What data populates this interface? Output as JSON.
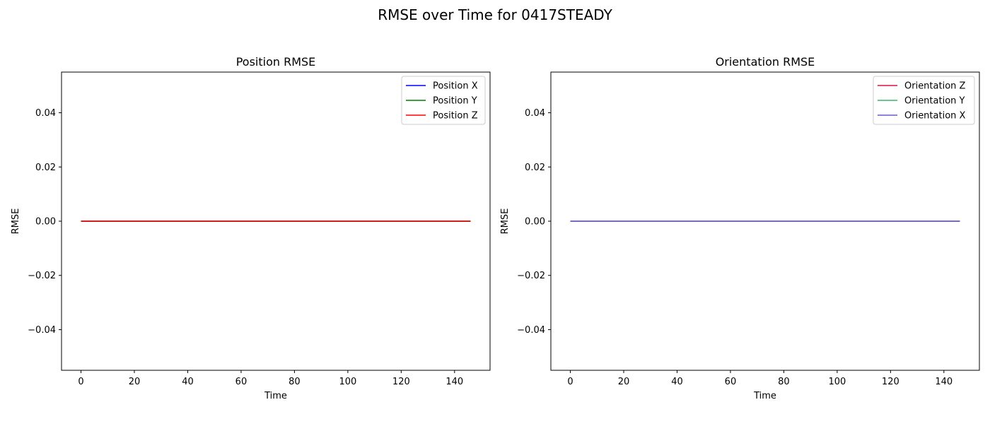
{
  "figure": {
    "suptitle": "RMSE over Time for 0417STEADY"
  },
  "chart_data": [
    {
      "type": "line",
      "title": "Position RMSE",
      "xlabel": "Time",
      "ylabel": "RMSE",
      "xlim": [
        -7.3,
        153.3
      ],
      "ylim": [
        -0.055,
        0.055
      ],
      "xticks": [
        0,
        20,
        40,
        60,
        80,
        100,
        120,
        140
      ],
      "xtick_labels": [
        "0",
        "20",
        "40",
        "60",
        "80",
        "100",
        "120",
        "140"
      ],
      "yticks": [
        -0.04,
        -0.02,
        0.0,
        0.02,
        0.04
      ],
      "ytick_labels": [
        "−0.04",
        "−0.02",
        "0.00",
        "0.02",
        "0.04"
      ],
      "grid": false,
      "legend_position": "top-right",
      "series": [
        {
          "name": "Position X",
          "color": "#0000ff",
          "x": [
            0,
            146
          ],
          "y": [
            0,
            0
          ]
        },
        {
          "name": "Position Y",
          "color": "#008000",
          "x": [
            0,
            146
          ],
          "y": [
            0,
            0
          ]
        },
        {
          "name": "Position Z",
          "color": "#ff0000",
          "x": [
            0,
            146
          ],
          "y": [
            0,
            0
          ]
        }
      ]
    },
    {
      "type": "line",
      "title": "Orientation RMSE",
      "xlabel": "Time",
      "ylabel": "RMSE",
      "xlim": [
        -7.3,
        153.3
      ],
      "ylim": [
        -0.055,
        0.055
      ],
      "xticks": [
        0,
        20,
        40,
        60,
        80,
        100,
        120,
        140
      ],
      "xtick_labels": [
        "0",
        "20",
        "40",
        "60",
        "80",
        "100",
        "120",
        "140"
      ],
      "yticks": [
        -0.04,
        -0.02,
        0.0,
        0.02,
        0.04
      ],
      "ytick_labels": [
        "−0.04",
        "−0.02",
        "0.00",
        "0.02",
        "0.04"
      ],
      "grid": false,
      "legend_position": "top-right",
      "series": [
        {
          "name": "Orientation Z",
          "color": "#dc143c",
          "x": [
            0,
            146
          ],
          "y": [
            0,
            0
          ]
        },
        {
          "name": "Orientation Y",
          "color": "#3cb371",
          "x": [
            0,
            146
          ],
          "y": [
            0,
            0
          ]
        },
        {
          "name": "Orientation X",
          "color": "#6a5acd",
          "x": [
            0,
            146
          ],
          "y": [
            0,
            0
          ]
        }
      ]
    }
  ]
}
